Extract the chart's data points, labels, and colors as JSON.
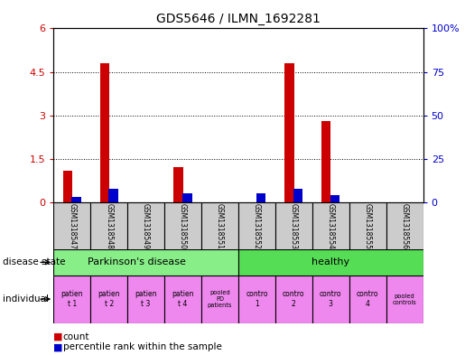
{
  "title": "GDS5646 / ILMN_1692281",
  "samples": [
    "GSM1318547",
    "GSM1318548",
    "GSM1318549",
    "GSM1318550",
    "GSM1318551",
    "GSM1318552",
    "GSM1318553",
    "GSM1318554",
    "GSM1318555",
    "GSM1318556"
  ],
  "count_values": [
    1.1,
    4.8,
    0.0,
    1.2,
    0.0,
    0.0,
    4.8,
    2.8,
    0.0,
    0.0
  ],
  "percentile_values": [
    3.0,
    8.0,
    0.0,
    5.0,
    0.0,
    5.0,
    8.0,
    4.0,
    0.0,
    0.0
  ],
  "ylim_left": [
    0,
    6
  ],
  "ylim_right": [
    0,
    100
  ],
  "yticks_left": [
    0,
    1.5,
    3.0,
    4.5,
    6.0
  ],
  "yticks_right": [
    0,
    25,
    50,
    75,
    100
  ],
  "bar_color_count": "#cc0000",
  "bar_color_percentile": "#0000cc",
  "bg_color": "#ffffff",
  "sample_bg_color": "#cccccc",
  "left_ytick_color": "#cc0000",
  "right_ytick_color": "#0000cc",
  "disease_state_green_light": "#88ee88",
  "disease_state_green_dark": "#55dd55",
  "individual_bg": "#ee88ee",
  "individual_pooled_bg": "#ee88ee"
}
